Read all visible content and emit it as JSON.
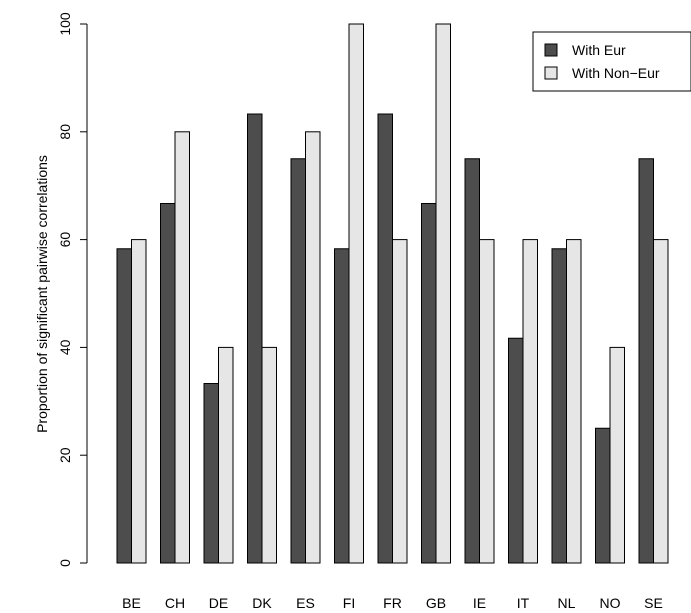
{
  "chart_data": {
    "type": "bar",
    "title": "",
    "xlabel": "",
    "ylabel": "Proportion of significant pairwise correlations",
    "ylim": [
      0,
      100
    ],
    "yticks": [
      0,
      20,
      40,
      60,
      80,
      100
    ],
    "grid": false,
    "legend_position": "top-right",
    "categories": [
      "BE",
      "CH",
      "DE",
      "DK",
      "ES",
      "FI",
      "FR",
      "GB",
      "IE",
      "IT",
      "NL",
      "NO",
      "SE"
    ],
    "series": [
      {
        "name": "With Eur",
        "color": "#4d4d4d",
        "values": [
          58.3,
          66.7,
          33.3,
          83.3,
          75.0,
          58.3,
          83.3,
          66.7,
          75.0,
          41.7,
          58.3,
          25.0,
          75.0
        ]
      },
      {
        "name": "With Non−Eur",
        "color": "#e6e6e6",
        "values": [
          60,
          80,
          40,
          40,
          80,
          100,
          60,
          100,
          60,
          60,
          60,
          40,
          60
        ]
      }
    ]
  }
}
